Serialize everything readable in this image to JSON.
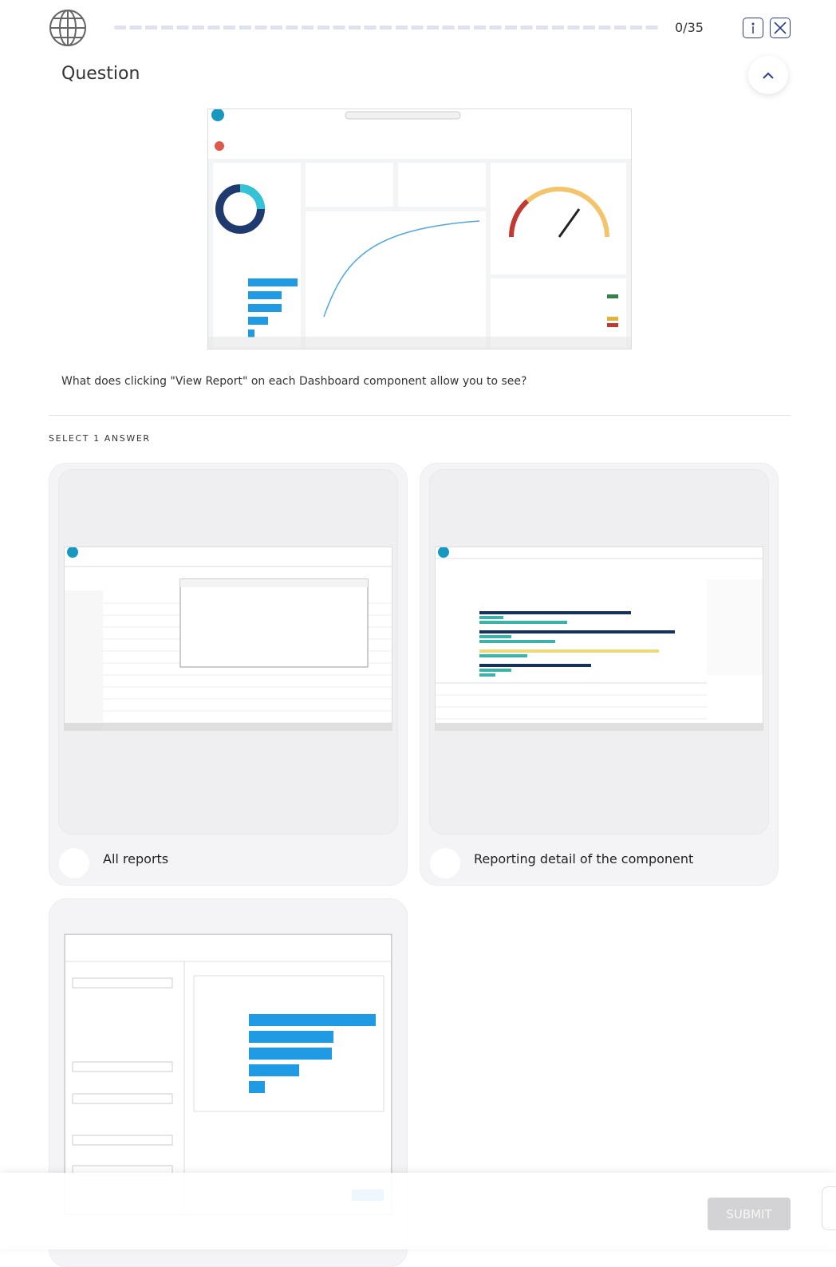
{
  "header": {
    "progress": "0/35"
  },
  "question": {
    "heading": "Question",
    "text": "What does clicking \"View Report\" on each Dashboard component allow you to see?"
  },
  "instructions": "SELECT 1 ANSWER",
  "answers": [
    {
      "label": "All reports"
    },
    {
      "label": "Reporting detail of the component"
    }
  ],
  "footer": {
    "submit": "SUBMIT"
  }
}
